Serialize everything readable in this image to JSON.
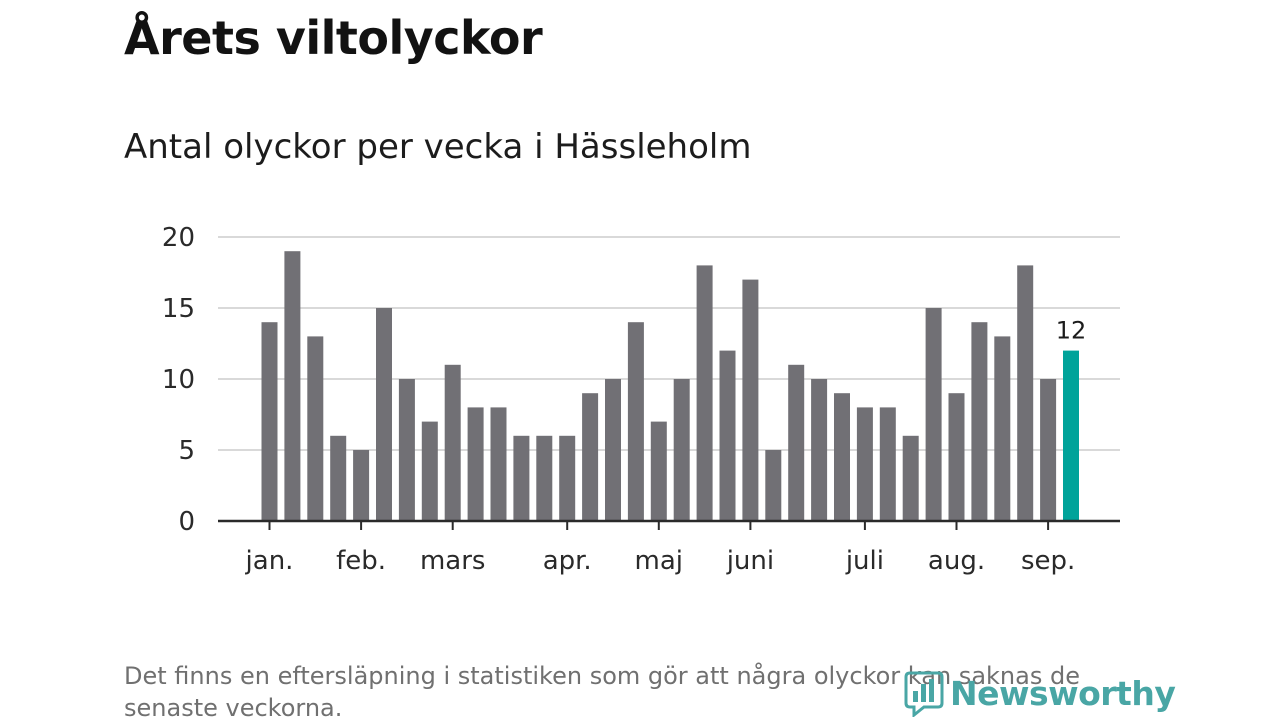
{
  "title": "Årets viltolyckor",
  "subtitle": "Antal olyckor per vecka i Hässleholm",
  "footnote": "Det finns en eftersläpning i statistiken som gör att några olyckor kan saknas de senaste veckorna.",
  "brand": {
    "name": "Newsworthy",
    "icon": "newsworthy-logo-icon",
    "color": "#49a6a5"
  },
  "chart_data": {
    "type": "bar",
    "title": "",
    "xlabel": "",
    "ylabel": "",
    "ylim": [
      0,
      20
    ],
    "yticks": [
      "0",
      "5",
      "10",
      "15",
      "20"
    ],
    "grid": true,
    "values": [
      14,
      19,
      13,
      6,
      5,
      15,
      10,
      7,
      11,
      8,
      8,
      6,
      6,
      6,
      9,
      10,
      14,
      7,
      10,
      18,
      12,
      17,
      5,
      11,
      10,
      9,
      8,
      8,
      6,
      15,
      9,
      14,
      13,
      18,
      10,
      12
    ],
    "month_labels": [
      {
        "label": "jan.",
        "week": 1
      },
      {
        "label": "feb.",
        "week": 5
      },
      {
        "label": "mars",
        "week": 9
      },
      {
        "label": "apr.",
        "week": 14
      },
      {
        "label": "maj",
        "week": 18
      },
      {
        "label": "juni",
        "week": 22
      },
      {
        "label": "juli",
        "week": 27
      },
      {
        "label": "aug.",
        "week": 31
      },
      {
        "label": "sep.",
        "week": 35
      }
    ],
    "highlight": {
      "week": 36,
      "label": "12"
    },
    "bar_color": "#717075",
    "highlight_color": "#00a39a"
  }
}
